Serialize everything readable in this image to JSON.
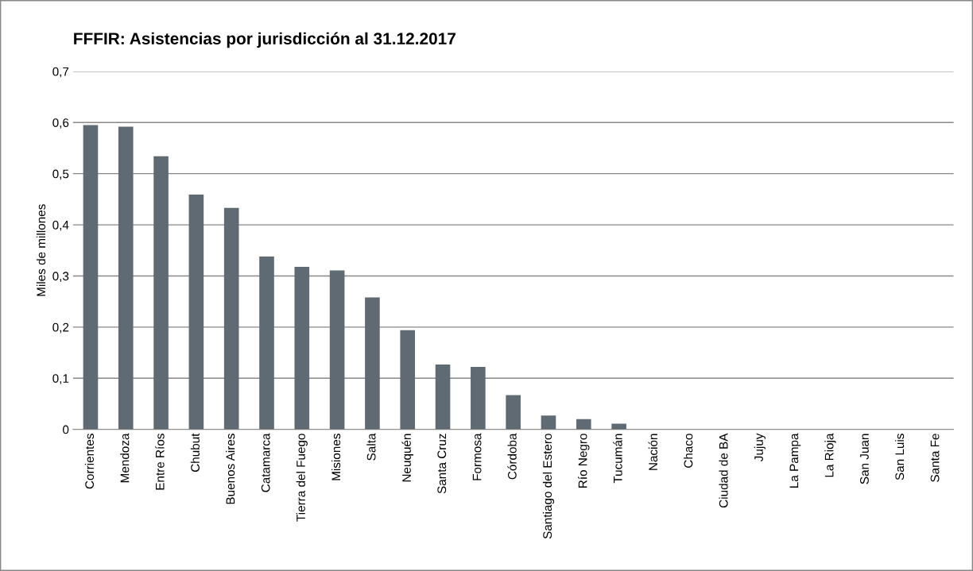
{
  "chart_data": {
    "type": "bar",
    "title": "FFFIR: Asistencias por jurisdicción al 31.12.2017",
    "ylabel": "Miles de millones",
    "categories": [
      "Corrientes",
      "Mendoza",
      "Entre Ríos",
      "Chubut",
      "Buenos Aires",
      "Catamarca",
      "Tierra del Fuego",
      "Misiones",
      "Salta",
      "Neuquén",
      "Santa Cruz",
      "Formosa",
      "Córdoba",
      "Santiago del Estero",
      "Río Negro",
      "Tucumán",
      "Nación",
      "Chaco",
      "Ciudad de BA",
      "Jujuy",
      "La Pampa",
      "La Rioja",
      "San Juan",
      "San Luis",
      "Santa Fe"
    ],
    "values": [
      0.595,
      0.592,
      0.534,
      0.459,
      0.433,
      0.338,
      0.318,
      0.311,
      0.258,
      0.194,
      0.127,
      0.122,
      0.067,
      0.027,
      0.02,
      0.011,
      0,
      0,
      0,
      0,
      0,
      0,
      0,
      0,
      0
    ],
    "color": "#5f6a72",
    "ylim": [
      0,
      0.7
    ],
    "yticks": [
      0,
      {
        "value": 0.1,
        "label": "0,1"
      },
      {
        "value": 0.2,
        "label": "0,2"
      },
      {
        "value": 0.3,
        "label": "0,3"
      },
      {
        "value": 0.4,
        "label": "0,4"
      },
      {
        "value": 0.5,
        "label": "0,5"
      },
      {
        "value": 0.6,
        "label": "0,6"
      },
      {
        "value": 0.7,
        "label": "0,7"
      }
    ],
    "grid": "y"
  }
}
